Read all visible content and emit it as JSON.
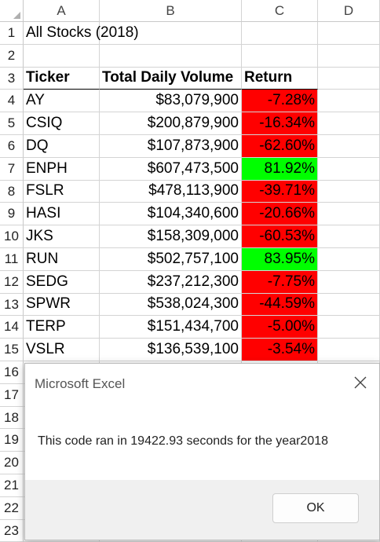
{
  "columns": [
    "A",
    "B",
    "C",
    "D"
  ],
  "row_numbers": [
    "1",
    "2",
    "3",
    "4",
    "5",
    "6",
    "7",
    "8",
    "9",
    "10",
    "11",
    "12",
    "13",
    "14",
    "15",
    "16",
    "17",
    "18",
    "19",
    "20",
    "21",
    "22",
    "23"
  ],
  "title": "All Stocks (2018)",
  "headers": {
    "ticker": "Ticker",
    "volume": "Total Daily Volume",
    "return": "Return"
  },
  "rows": [
    {
      "ticker": "AY",
      "volume": "$83,079,900",
      "return": "-7.28%",
      "status": "negative"
    },
    {
      "ticker": "CSIQ",
      "volume": "$200,879,900",
      "return": "-16.34%",
      "status": "negative"
    },
    {
      "ticker": "DQ",
      "volume": "$107,873,900",
      "return": "-62.60%",
      "status": "negative"
    },
    {
      "ticker": "ENPH",
      "volume": "$607,473,500",
      "return": "81.92%",
      "status": "positive"
    },
    {
      "ticker": "FSLR",
      "volume": "$478,113,900",
      "return": "-39.71%",
      "status": "negative"
    },
    {
      "ticker": "HASI",
      "volume": "$104,340,600",
      "return": "-20.66%",
      "status": "negative"
    },
    {
      "ticker": "JKS",
      "volume": "$158,309,000",
      "return": "-60.53%",
      "status": "negative"
    },
    {
      "ticker": "RUN",
      "volume": "$502,757,100",
      "return": "83.95%",
      "status": "positive"
    },
    {
      "ticker": "SEDG",
      "volume": "$237,212,300",
      "return": "-7.75%",
      "status": "negative"
    },
    {
      "ticker": "SPWR",
      "volume": "$538,024,300",
      "return": "-44.59%",
      "status": "negative"
    },
    {
      "ticker": "TERP",
      "volume": "$151,434,700",
      "return": "-5.00%",
      "status": "negative"
    },
    {
      "ticker": "VSLR",
      "volume": "$136,539,100",
      "return": "-3.54%",
      "status": "negative"
    }
  ],
  "colors": {
    "negative": "#ff0000",
    "positive": "#00ff00"
  },
  "dialog": {
    "title": "Microsoft Excel",
    "message": "This code ran in 19422.93 seconds for the year2018",
    "ok_label": "OK",
    "close_icon": "close-icon"
  }
}
